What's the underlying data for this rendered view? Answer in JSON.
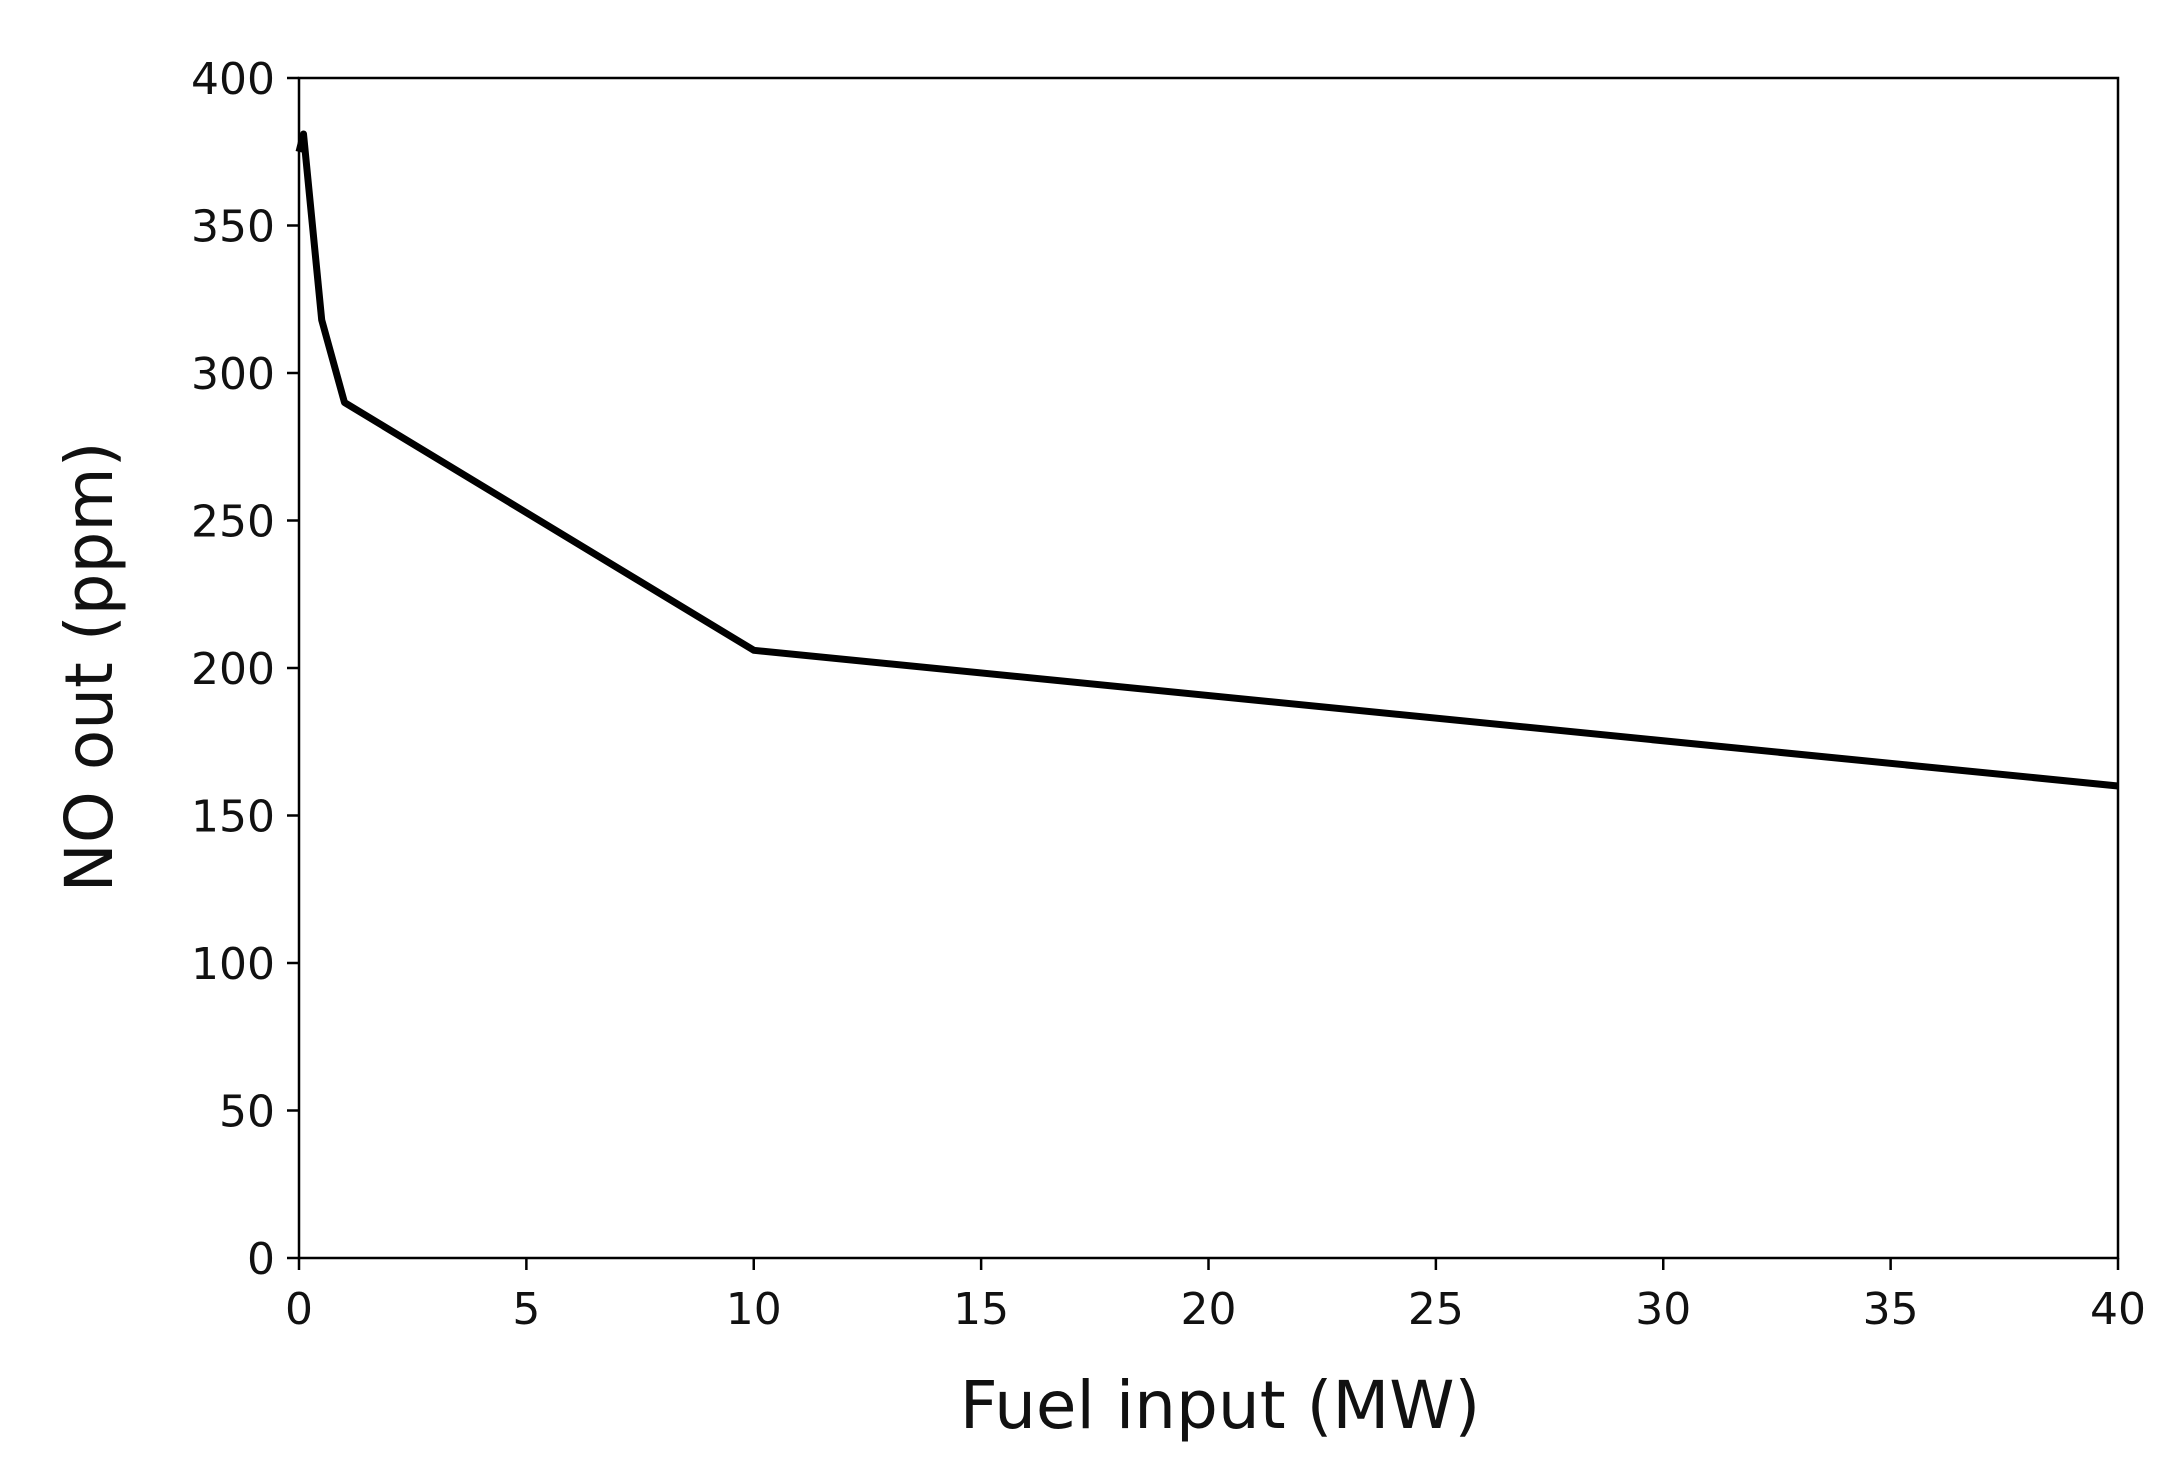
{
  "chart_data": {
    "type": "line",
    "title": "",
    "xlabel": "Fuel input (MW)",
    "ylabel": "NO out (ppm)",
    "xlim": [
      0,
      40
    ],
    "ylim": [
      0,
      400
    ],
    "xticks": [
      0,
      5,
      10,
      15,
      20,
      25,
      30,
      35,
      40
    ],
    "yticks": [
      0,
      50,
      100,
      150,
      200,
      250,
      300,
      350,
      400
    ],
    "grid": false,
    "legend": "none",
    "line_color": "#000000",
    "series": [
      {
        "x": [
          0,
          0.1,
          0.5,
          1,
          10,
          40
        ],
        "y": [
          375,
          381,
          318,
          290,
          206,
          160
        ]
      }
    ]
  }
}
